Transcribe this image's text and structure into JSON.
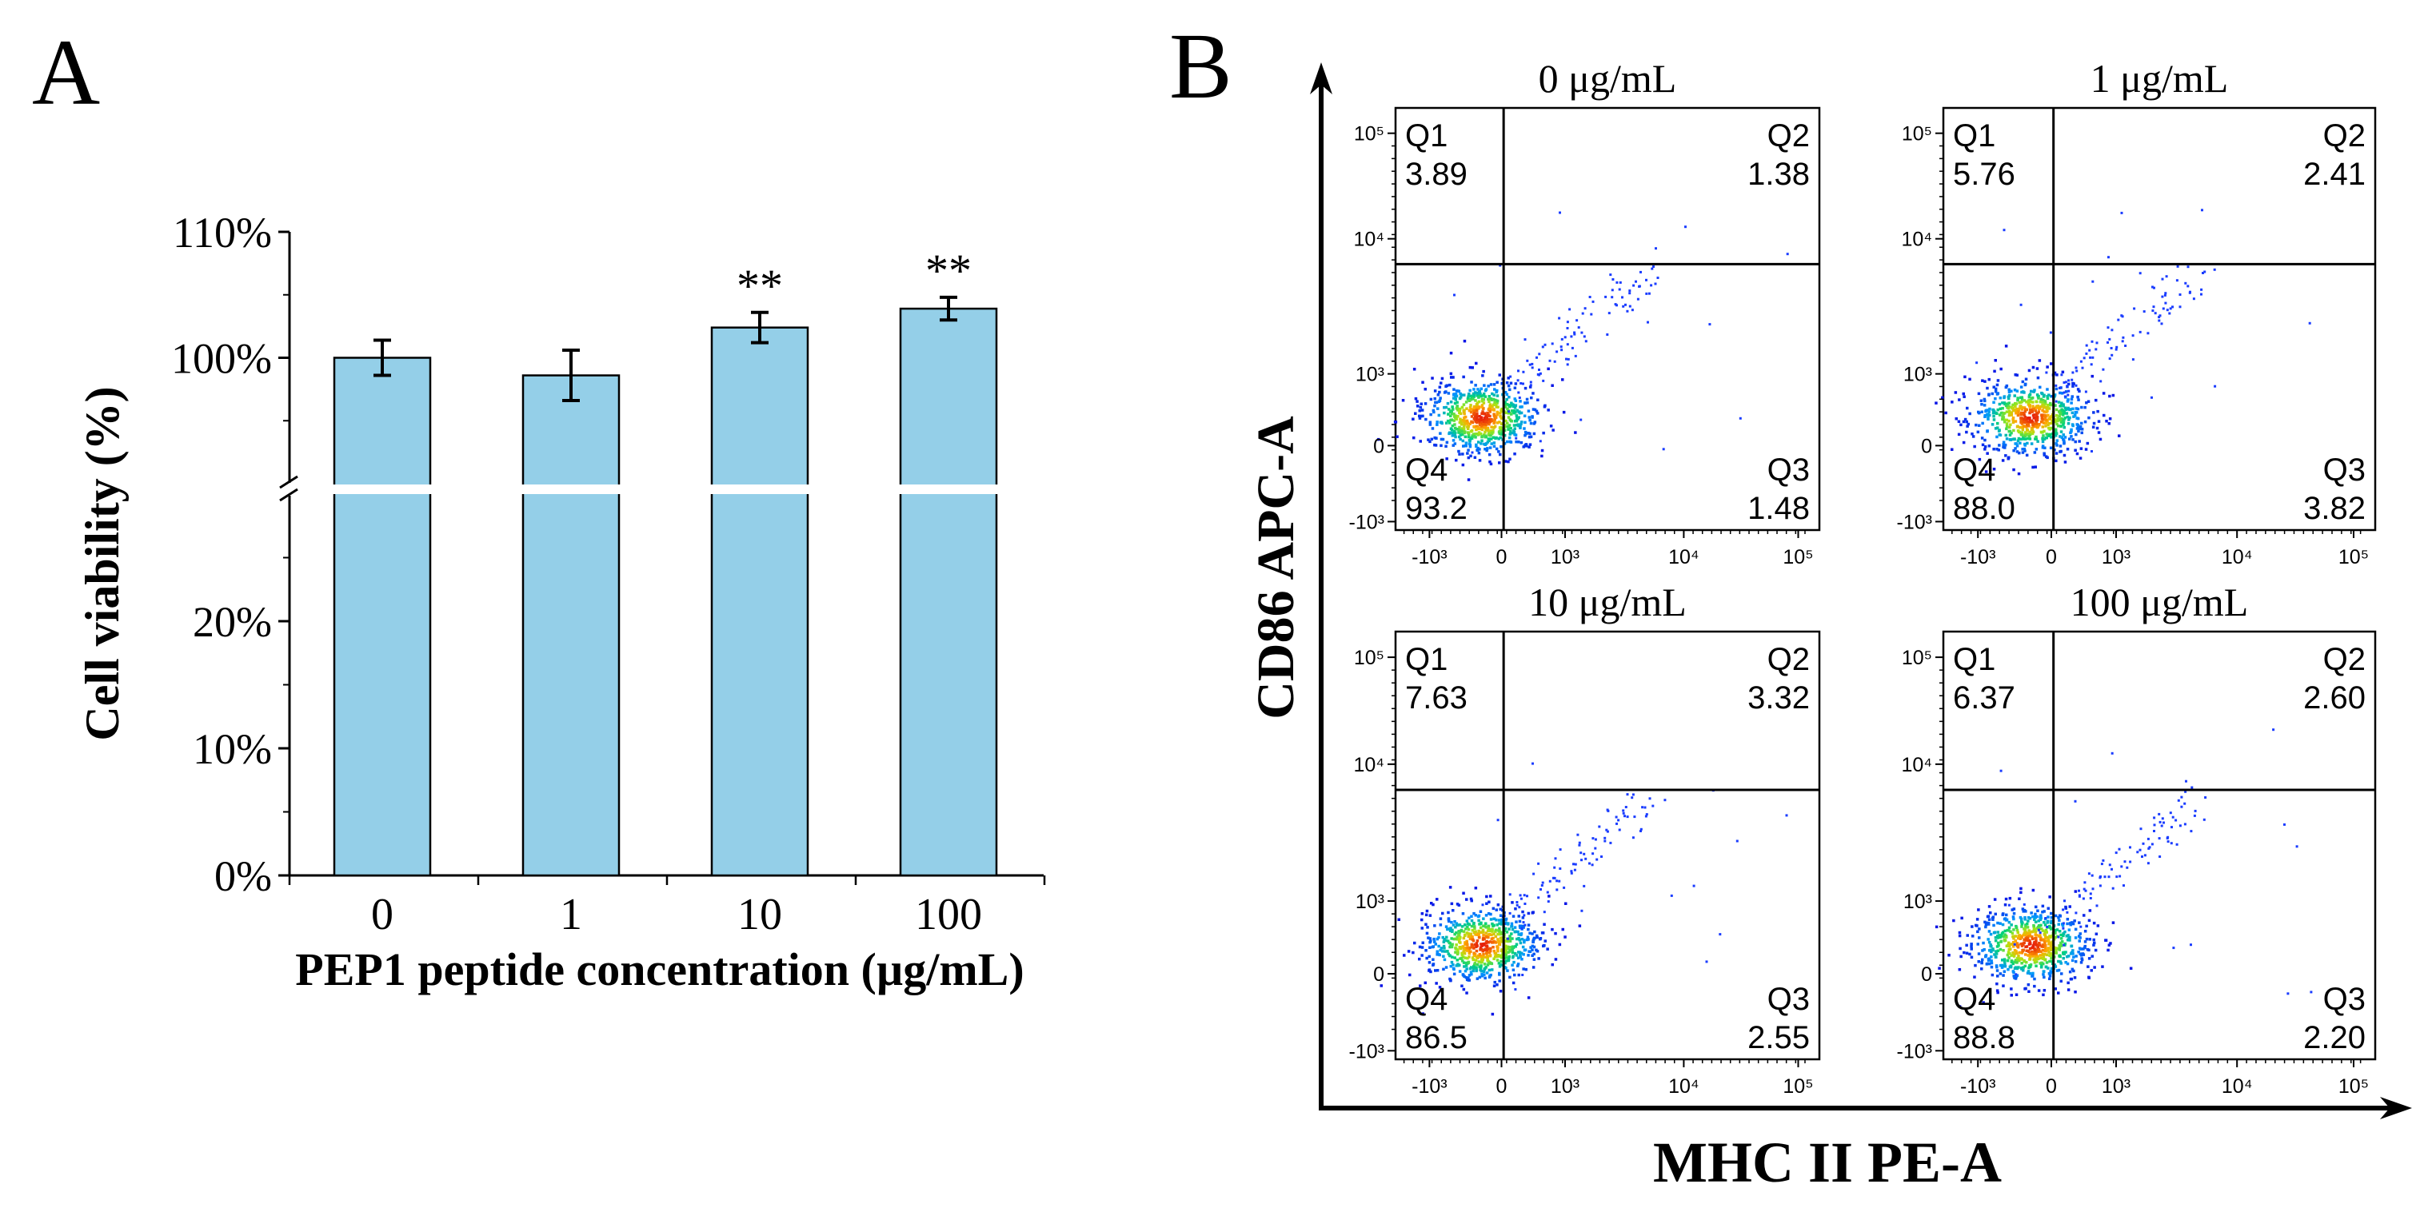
{
  "panels": {
    "a_letter": "A",
    "b_letter": "B"
  },
  "chart_data": [
    {
      "type": "bar",
      "panel": "A",
      "title": "",
      "xlabel": "PEP1 peptide concentration (µg/mL)",
      "ylabel": "Cell viability (%)",
      "categories": [
        "0",
        "1",
        "10",
        "100"
      ],
      "values": [
        100.0,
        98.6,
        102.4,
        103.9
      ],
      "errors": [
        1.4,
        2.0,
        1.2,
        0.9
      ],
      "significance": [
        "",
        "",
        "**",
        "**"
      ],
      "axis_break": true,
      "y_ticks_lower": [
        "0%",
        "10%",
        "20%"
      ],
      "y_ticks_upper": [
        "100%",
        "110%"
      ],
      "ylim_lower": [
        0,
        30
      ],
      "ylim_upper": [
        90,
        110
      ],
      "bar_color": "#94cfe8"
    },
    {
      "type": "scatter",
      "panel": "B",
      "description_type": "flow cytometry quadrant plots",
      "xlabel": "MHC II PE-A",
      "ylabel": "CD86 APC-A",
      "x_ticks": [
        "-10³",
        "0",
        "10³",
        "10⁴",
        "10⁵"
      ],
      "y_ticks": [
        "10⁵",
        "10⁴",
        "10³",
        "0",
        "-10³"
      ],
      "plots": [
        {
          "title": "0 μg/mL",
          "q1": "3.89",
          "q2": "1.38",
          "q3": "1.48",
          "q4": "93.2"
        },
        {
          "title": "1 μg/mL",
          "q1": "5.76",
          "q2": "2.41",
          "q3": "3.82",
          "q4": "88.0"
        },
        {
          "title": "10 μg/mL",
          "q1": "7.63",
          "q2": "3.32",
          "q3": "2.55",
          "q4": "86.5"
        },
        {
          "title": "100 μg/mL",
          "q1": "6.37",
          "q2": "2.60",
          "q3": "2.20",
          "q4": "88.8"
        }
      ],
      "quadrant_labels": [
        "Q1",
        "Q2",
        "Q3",
        "Q4"
      ]
    }
  ]
}
